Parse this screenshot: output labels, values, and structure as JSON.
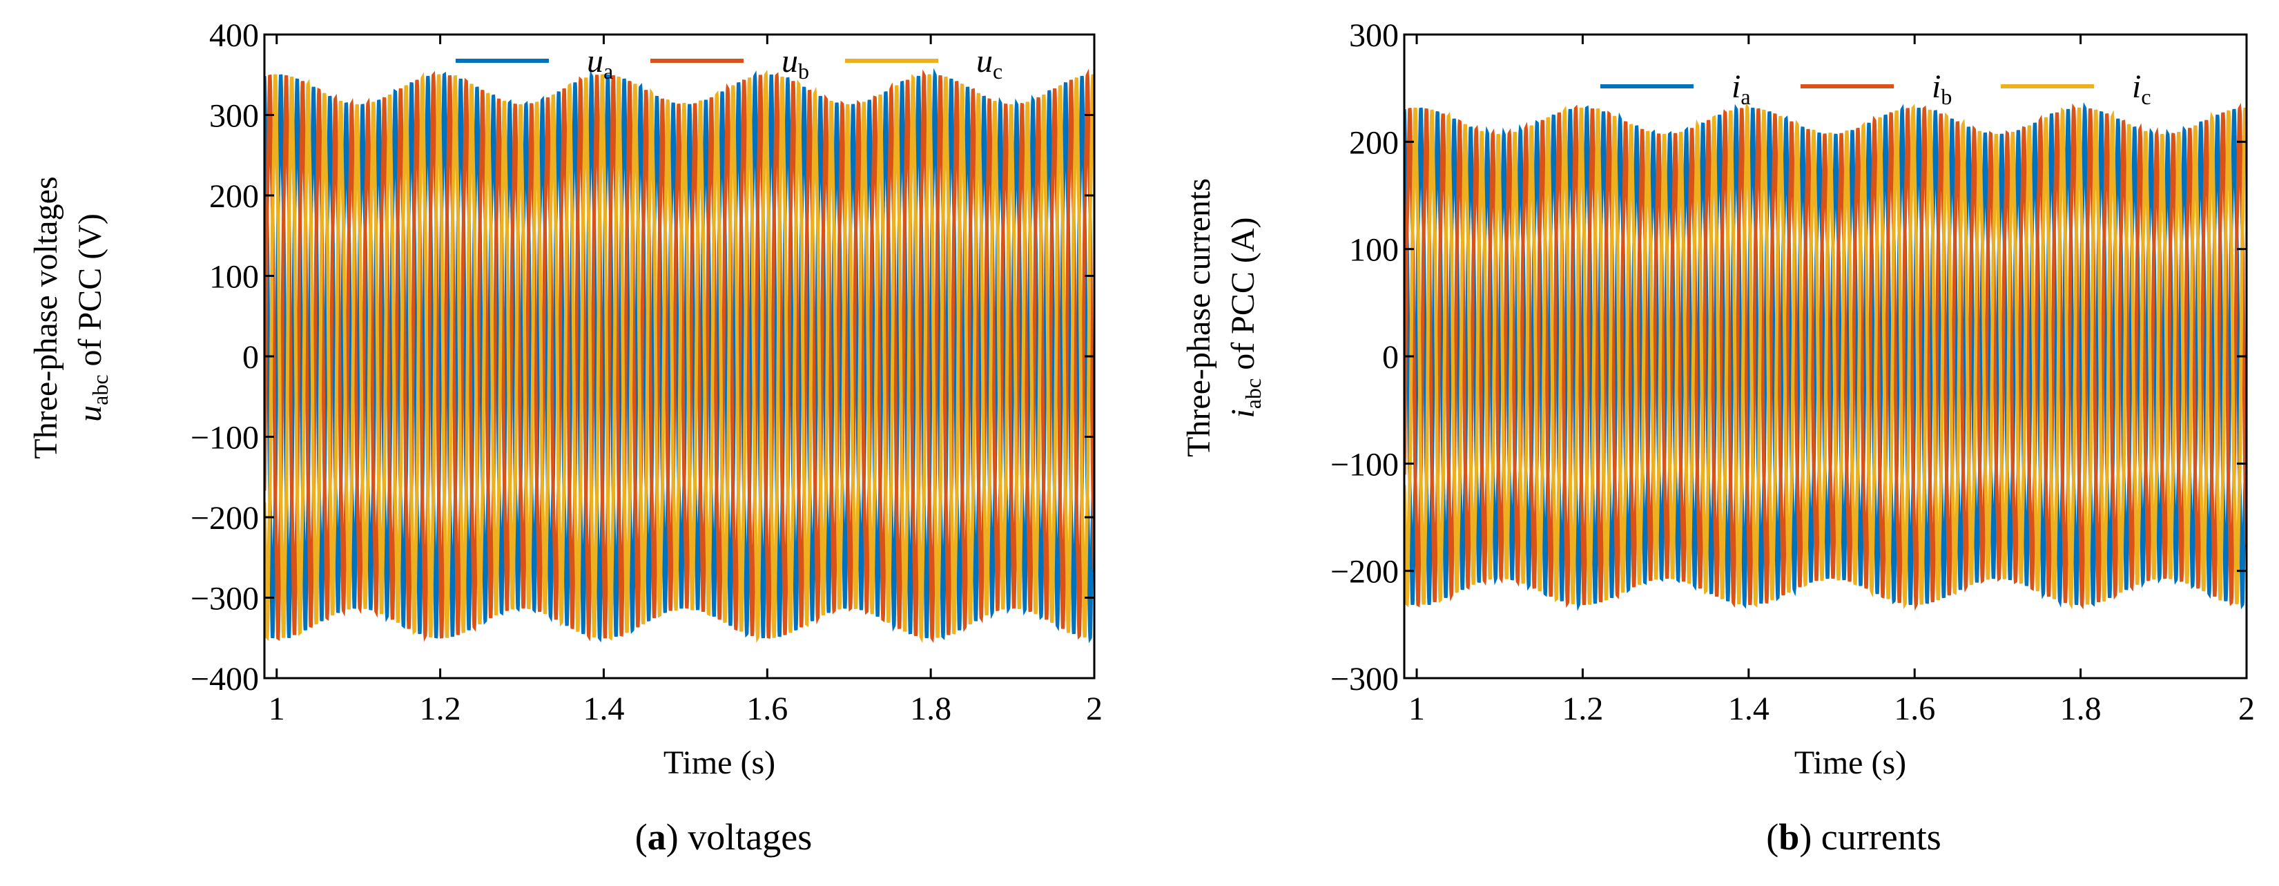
{
  "chart_data": [
    {
      "id": "a",
      "type": "line",
      "caption_label": "a",
      "caption_text": " voltages",
      "xlabel": "Time (s)",
      "ylabel_line1": "Three-phase voltages",
      "ylabel_sym": "u",
      "ylabel_sub": "abc",
      "ylabel_rest": " of PCC (V)",
      "xlim": [
        0.985,
        2.0
      ],
      "ylim": [
        -400,
        400
      ],
      "xticks": [
        1,
        1.2,
        1.4,
        1.6,
        1.8,
        2
      ],
      "xtick_labels": [
        "1",
        "1.2",
        "1.4",
        "1.6",
        "1.8",
        "2"
      ],
      "yticks": [
        -400,
        -300,
        -200,
        -100,
        0,
        100,
        200,
        300,
        400
      ],
      "ytick_labels": [
        "−400",
        "−300",
        "−200",
        "−100",
        "0",
        "100",
        "200",
        "300",
        "400"
      ],
      "frequency_hz": 50,
      "series": [
        {
          "name": "u",
          "sub": "a",
          "color": "#0072BD",
          "amplitude": 310,
          "phase_deg": 0
        },
        {
          "name": "u",
          "sub": "b",
          "color": "#D95319",
          "amplitude": 310,
          "phase_deg": -120
        },
        {
          "name": "u",
          "sub": "c",
          "color": "#EDB120",
          "amplitude": 310,
          "phase_deg": 120
        }
      ]
    },
    {
      "id": "b",
      "type": "line",
      "caption_label": "b",
      "caption_text": " currents",
      "xlabel": "Time (s)",
      "ylabel_line1": "Three-phase currents",
      "ylabel_sym": "i",
      "ylabel_sub": "abc",
      "ylabel_rest": " of PCC (A)",
      "xlim": [
        0.985,
        2.0
      ],
      "ylim": [
        -300,
        300
      ],
      "xticks": [
        1,
        1.2,
        1.4,
        1.6,
        1.8,
        2
      ],
      "xtick_labels": [
        "1",
        "1.2",
        "1.4",
        "1.6",
        "1.8",
        "2"
      ],
      "yticks": [
        -300,
        -200,
        -100,
        0,
        100,
        200,
        300
      ],
      "ytick_labels": [
        "−300",
        "−200",
        "−100",
        "0",
        "100",
        "200",
        "300"
      ],
      "frequency_hz": 50,
      "series": [
        {
          "name": "i",
          "sub": "a",
          "color": "#0072BD",
          "amplitude": 205,
          "phase_deg": 0
        },
        {
          "name": "i",
          "sub": "b",
          "color": "#D95319",
          "amplitude": 205,
          "phase_deg": -120
        },
        {
          "name": "i",
          "sub": "c",
          "color": "#EDB120",
          "amplitude": 205,
          "phase_deg": 120
        }
      ]
    }
  ]
}
